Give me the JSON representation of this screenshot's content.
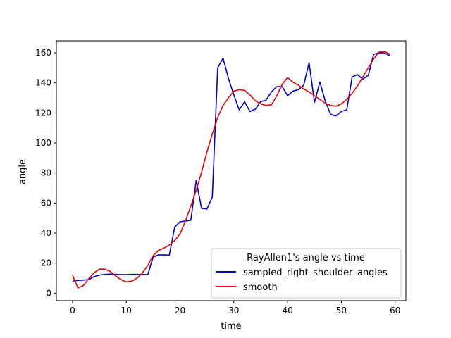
{
  "chart_data": {
    "type": "line",
    "xlabel": "time",
    "ylabel": "angle",
    "xlim": [
      -3,
      62
    ],
    "ylim": [
      -5,
      168
    ],
    "xticks": [
      0,
      10,
      20,
      30,
      40,
      50,
      60
    ],
    "yticks": [
      0,
      20,
      40,
      60,
      80,
      100,
      120,
      140,
      160
    ],
    "grid": false,
    "legend": {
      "title": "RayAllen1's angle vs time",
      "placement": "lower-right"
    },
    "x": [
      0,
      1,
      2,
      3,
      4,
      5,
      6,
      7,
      8,
      9,
      10,
      11,
      12,
      13,
      14,
      15,
      16,
      17,
      18,
      19,
      20,
      21,
      22,
      23,
      24,
      25,
      26,
      27,
      28,
      29,
      30,
      31,
      32,
      33,
      34,
      35,
      36,
      37,
      38,
      39,
      40,
      41,
      42,
      43,
      44,
      45,
      46,
      47,
      48,
      49,
      50,
      51,
      52,
      53,
      54,
      55,
      56,
      57,
      58,
      59
    ],
    "series": [
      {
        "name": "sampled_right_shoulder_angles",
        "color": "#0000cc",
        "values": [
          8,
          8.5,
          8.7,
          9,
          11,
          12,
          12.5,
          12.7,
          12.5,
          12.3,
          12.3,
          12.5,
          12.5,
          12.5,
          12.3,
          24,
          25.5,
          25.5,
          25.3,
          44,
          47.5,
          48,
          48.5,
          75,
          56.5,
          56,
          64,
          150,
          156.5,
          143,
          132,
          122,
          127.5,
          121,
          122.5,
          127.5,
          128.5,
          134,
          137.5,
          137.5,
          131.5,
          134.5,
          135.5,
          138.5,
          153.5,
          127,
          140.5,
          128,
          119,
          118,
          121,
          122,
          144,
          145.5,
          142.5,
          145,
          159,
          160,
          160,
          158
        ]
      },
      {
        "name": "smooth",
        "color": "#ee0000",
        "values": [
          12,
          3.5,
          5,
          9.5,
          13.5,
          16,
          16,
          14.5,
          11.5,
          9,
          7.5,
          8,
          10,
          13.5,
          18.5,
          25,
          28.5,
          30,
          32,
          35,
          39.5,
          48,
          58,
          68.5,
          80.5,
          94,
          106,
          117,
          125,
          130,
          134.5,
          135.5,
          135,
          132,
          128,
          126,
          125,
          125.5,
          131.5,
          139,
          143.5,
          140.5,
          138.5,
          136,
          134,
          131.5,
          129,
          126.5,
          125,
          124.5,
          126,
          129,
          133,
          138,
          144,
          150,
          156,
          160.5,
          161,
          159
        ]
      }
    ]
  }
}
